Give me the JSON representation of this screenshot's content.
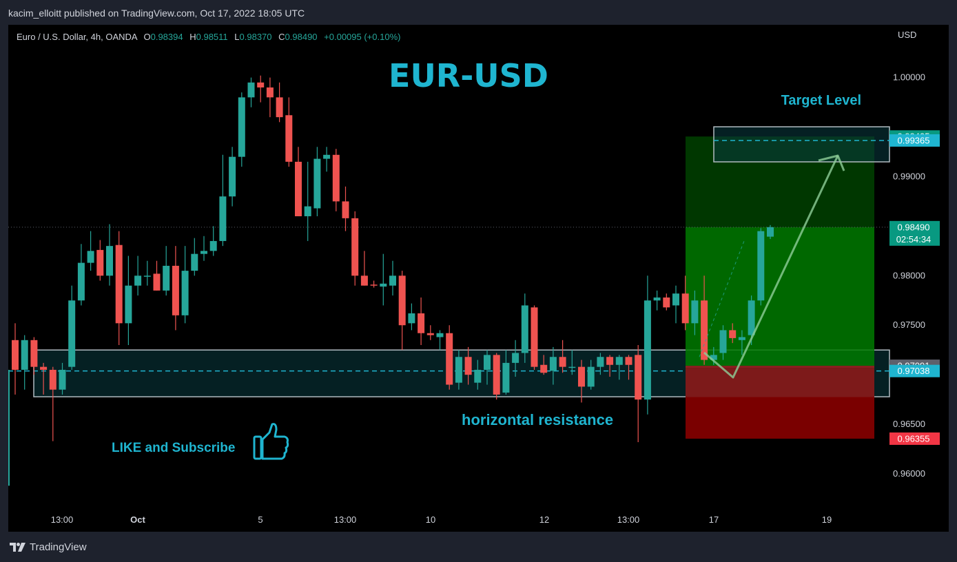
{
  "header": {
    "publish_text": "kacim_elloitt published on TradingView.com, Oct 17, 2022 18:05 UTC"
  },
  "legend": {
    "symbol": "Euro / U.S. Dollar, 4h, OANDA",
    "o_label": "O",
    "o_value": "0.98394",
    "h_label": "H",
    "h_value": "0.98511",
    "l_label": "L",
    "l_value": "0.98370",
    "c_label": "C",
    "c_value": "0.98490",
    "change": "+0.00095 (+0.10%)"
  },
  "footer": {
    "brand": "TradingView"
  },
  "colors": {
    "up": "#26a69a",
    "down": "#ef5350",
    "accent_cyan": "#1fb5d0",
    "background": "#000000"
  },
  "chart_data": {
    "type": "candlestick",
    "title": "EUR-USD",
    "currency": "USD",
    "y_axis": {
      "ticks": [
        "1.00000",
        "0.99000",
        "0.98000",
        "0.97500",
        "0.96500",
        "0.96000"
      ],
      "range": [
        0.9588,
        1.0047
      ]
    },
    "x_axis": {
      "ticks": [
        "13:00",
        "Oct",
        "5",
        "13:00",
        "10",
        "12",
        "13:00",
        "17",
        "19"
      ]
    },
    "candles": [
      {
        "o": 0.9735,
        "h": 0.9752,
        "l": 0.968,
        "c": 0.9705
      },
      {
        "o": 0.9705,
        "h": 0.974,
        "l": 0.9685,
        "c": 0.9735
      },
      {
        "o": 0.9735,
        "h": 0.9738,
        "l": 0.97,
        "c": 0.9708
      },
      {
        "o": 0.9708,
        "h": 0.9712,
        "l": 0.968,
        "c": 0.9705
      },
      {
        "o": 0.9705,
        "h": 0.9708,
        "l": 0.9633,
        "c": 0.9685
      },
      {
        "o": 0.9685,
        "h": 0.9712,
        "l": 0.968,
        "c": 0.9705
      },
      {
        "o": 0.9708,
        "h": 0.979,
        "l": 0.9705,
        "c": 0.9775
      },
      {
        "o": 0.9775,
        "h": 0.9832,
        "l": 0.977,
        "c": 0.9813
      },
      {
        "o": 0.9813,
        "h": 0.9845,
        "l": 0.9805,
        "c": 0.9825
      },
      {
        "o": 0.9826,
        "h": 0.9836,
        "l": 0.9795,
        "c": 0.98
      },
      {
        "o": 0.98,
        "h": 0.9852,
        "l": 0.979,
        "c": 0.983
      },
      {
        "o": 0.9831,
        "h": 0.9845,
        "l": 0.973,
        "c": 0.9752
      },
      {
        "o": 0.9752,
        "h": 0.982,
        "l": 0.973,
        "c": 0.979
      },
      {
        "o": 0.979,
        "h": 0.982,
        "l": 0.978,
        "c": 0.98
      },
      {
        "o": 0.98,
        "h": 0.9815,
        "l": 0.979,
        "c": 0.98
      },
      {
        "o": 0.9802,
        "h": 0.9815,
        "l": 0.9785,
        "c": 0.9785
      },
      {
        "o": 0.9785,
        "h": 0.983,
        "l": 0.978,
        "c": 0.981
      },
      {
        "o": 0.981,
        "h": 0.983,
        "l": 0.9745,
        "c": 0.976
      },
      {
        "o": 0.976,
        "h": 0.983,
        "l": 0.9752,
        "c": 0.9805
      },
      {
        "o": 0.9805,
        "h": 0.9838,
        "l": 0.98,
        "c": 0.9822
      },
      {
        "o": 0.9822,
        "h": 0.984,
        "l": 0.9815,
        "c": 0.9825
      },
      {
        "o": 0.9825,
        "h": 0.985,
        "l": 0.982,
        "c": 0.9835
      },
      {
        "o": 0.9835,
        "h": 0.9922,
        "l": 0.983,
        "c": 0.988
      },
      {
        "o": 0.988,
        "h": 0.993,
        "l": 0.987,
        "c": 0.992
      },
      {
        "o": 0.992,
        "h": 0.9985,
        "l": 0.991,
        "c": 0.998
      },
      {
        "o": 0.998,
        "h": 1.0,
        "l": 0.997,
        "c": 0.9995
      },
      {
        "o": 0.9995,
        "h": 1.0002,
        "l": 0.9975,
        "c": 0.999
      },
      {
        "o": 0.999,
        "h": 1.0,
        "l": 0.996,
        "c": 0.998
      },
      {
        "o": 0.998,
        "h": 0.9995,
        "l": 0.9955,
        "c": 0.996
      },
      {
        "o": 0.9962,
        "h": 0.998,
        "l": 0.991,
        "c": 0.9915
      },
      {
        "o": 0.9915,
        "h": 0.993,
        "l": 0.986,
        "c": 0.986
      },
      {
        "o": 0.986,
        "h": 0.9915,
        "l": 0.9835,
        "c": 0.987
      },
      {
        "o": 0.9868,
        "h": 0.993,
        "l": 0.986,
        "c": 0.9918
      },
      {
        "o": 0.9918,
        "h": 0.993,
        "l": 0.9905,
        "c": 0.9922
      },
      {
        "o": 0.9922,
        "h": 0.9928,
        "l": 0.9865,
        "c": 0.9875
      },
      {
        "o": 0.9875,
        "h": 0.989,
        "l": 0.9845,
        "c": 0.9858
      },
      {
        "o": 0.9858,
        "h": 0.9865,
        "l": 0.979,
        "c": 0.98
      },
      {
        "o": 0.98,
        "h": 0.9825,
        "l": 0.979,
        "c": 0.979
      },
      {
        "o": 0.9791,
        "h": 0.9795,
        "l": 0.9788,
        "c": 0.979
      },
      {
        "o": 0.9789,
        "h": 0.9822,
        "l": 0.977,
        "c": 0.9792
      },
      {
        "o": 0.979,
        "h": 0.9815,
        "l": 0.978,
        "c": 0.98
      },
      {
        "o": 0.98,
        "h": 0.9805,
        "l": 0.9725,
        "c": 0.975
      },
      {
        "o": 0.9752,
        "h": 0.9772,
        "l": 0.9745,
        "c": 0.9762
      },
      {
        "o": 0.9762,
        "h": 0.9778,
        "l": 0.973,
        "c": 0.9742
      },
      {
        "o": 0.9742,
        "h": 0.975,
        "l": 0.9735,
        "c": 0.974
      },
      {
        "o": 0.9738,
        "h": 0.9745,
        "l": 0.9725,
        "c": 0.9742
      },
      {
        "o": 0.9742,
        "h": 0.975,
        "l": 0.9685,
        "c": 0.969
      },
      {
        "o": 0.9692,
        "h": 0.9725,
        "l": 0.9685,
        "c": 0.9718
      },
      {
        "o": 0.9718,
        "h": 0.9728,
        "l": 0.969,
        "c": 0.97
      },
      {
        "o": 0.9692,
        "h": 0.9715,
        "l": 0.9685,
        "c": 0.9705
      },
      {
        "o": 0.9705,
        "h": 0.9725,
        "l": 0.969,
        "c": 0.972
      },
      {
        "o": 0.972,
        "h": 0.9722,
        "l": 0.9675,
        "c": 0.968
      },
      {
        "o": 0.9682,
        "h": 0.9725,
        "l": 0.968,
        "c": 0.9712
      },
      {
        "o": 0.9712,
        "h": 0.9735,
        "l": 0.9698,
        "c": 0.9722
      },
      {
        "o": 0.9722,
        "h": 0.9782,
        "l": 0.9712,
        "c": 0.977
      },
      {
        "o": 0.9768,
        "h": 0.977,
        "l": 0.9705,
        "c": 0.9708
      },
      {
        "o": 0.971,
        "h": 0.972,
        "l": 0.97,
        "c": 0.9702
      },
      {
        "o": 0.9704,
        "h": 0.9728,
        "l": 0.969,
        "c": 0.9718
      },
      {
        "o": 0.9718,
        "h": 0.9735,
        "l": 0.9702,
        "c": 0.9708
      },
      {
        "o": 0.9708,
        "h": 0.9725,
        "l": 0.97,
        "c": 0.9708
      },
      {
        "o": 0.9708,
        "h": 0.9715,
        "l": 0.9672,
        "c": 0.9688
      },
      {
        "o": 0.9688,
        "h": 0.9715,
        "l": 0.9685,
        "c": 0.9708
      },
      {
        "o": 0.9708,
        "h": 0.9722,
        "l": 0.97,
        "c": 0.9718
      },
      {
        "o": 0.9718,
        "h": 0.972,
        "l": 0.9698,
        "c": 0.971
      },
      {
        "o": 0.971,
        "h": 0.972,
        "l": 0.9695,
        "c": 0.9718
      },
      {
        "o": 0.9718,
        "h": 0.972,
        "l": 0.9695,
        "c": 0.971
      },
      {
        "o": 0.972,
        "h": 0.973,
        "l": 0.9632,
        "c": 0.9675
      },
      {
        "o": 0.9675,
        "h": 0.98,
        "l": 0.966,
        "c": 0.9775
      },
      {
        "o": 0.9775,
        "h": 0.9785,
        "l": 0.9765,
        "c": 0.9778
      },
      {
        "o": 0.9778,
        "h": 0.9782,
        "l": 0.9765,
        "c": 0.9768
      },
      {
        "o": 0.977,
        "h": 0.979,
        "l": 0.9752,
        "c": 0.9782
      },
      {
        "o": 0.9782,
        "h": 0.98,
        "l": 0.9745,
        "c": 0.9752
      },
      {
        "o": 0.9752,
        "h": 0.9785,
        "l": 0.974,
        "c": 0.9775
      },
      {
        "o": 0.9775,
        "h": 0.98,
        "l": 0.971,
        "c": 0.9715
      },
      {
        "o": 0.9715,
        "h": 0.9728,
        "l": 0.971,
        "c": 0.972
      },
      {
        "o": 0.9722,
        "h": 0.975,
        "l": 0.9715,
        "c": 0.9745
      },
      {
        "o": 0.9745,
        "h": 0.9752,
        "l": 0.9732,
        "c": 0.9737
      },
      {
        "o": 0.9735,
        "h": 0.9745,
        "l": 0.972,
        "c": 0.9738
      },
      {
        "o": 0.974,
        "h": 0.978,
        "l": 0.973,
        "c": 0.9775
      },
      {
        "o": 0.9775,
        "h": 0.9848,
        "l": 0.977,
        "c": 0.9845
      },
      {
        "o": 0.98394,
        "h": 0.98511,
        "l": 0.9837,
        "c": 0.9849
      }
    ],
    "last_price": "0.98490",
    "countdown": "02:54:34",
    "price_labels": [
      {
        "text": "0.99405",
        "value": 0.99405,
        "bg": "#089981"
      },
      {
        "text": "0.99365",
        "value": 0.99365,
        "bg": "#1fb5d0"
      },
      {
        "text": "0.97091",
        "value": 0.97091,
        "bg": "#5d606b"
      },
      {
        "text": "0.97038",
        "value": 0.97038,
        "bg": "#1fb5d0"
      },
      {
        "text": "0.96355",
        "value": 0.96355,
        "bg": "#f23645"
      }
    ],
    "annotations": {
      "target_label": "Target Level",
      "resistance_label": "horizontal resistance",
      "like_label": "LIKE and Subscribe"
    },
    "resistance_zone": {
      "top": 0.9725,
      "bottom": 0.96778,
      "dash": 0.97038
    },
    "target_zone": {
      "top": 0.99503,
      "bottom": 0.99149,
      "dash": 0.99365
    },
    "position": {
      "entry": 0.97091,
      "target": 0.99405,
      "stop": 0.96355,
      "current": 0.9849
    }
  }
}
